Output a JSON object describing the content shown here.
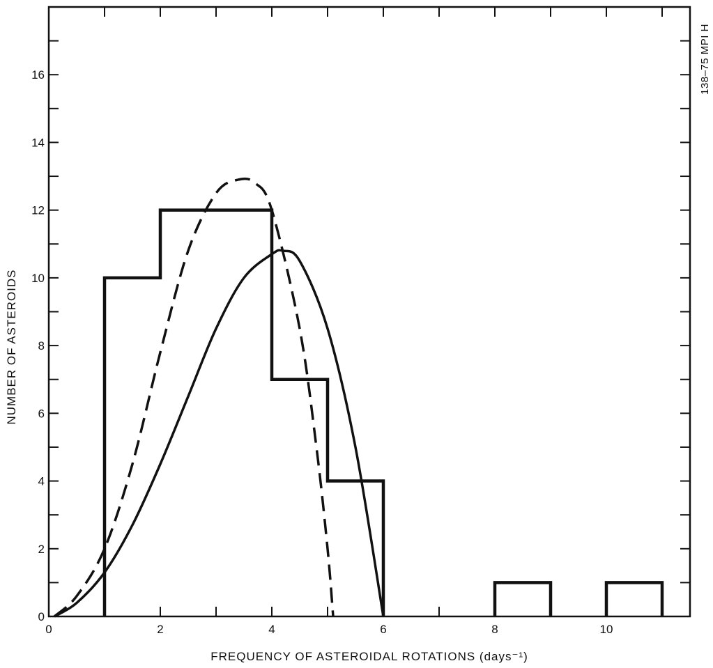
{
  "chart_data": {
    "type": "line",
    "xlabel": "FREQUENCY OF ASTEROIDAL ROTATIONS (days⁻¹)",
    "ylabel": "NUMBER OF ASTEROIDS",
    "side_note": "138–75 MPI H",
    "xlim": [
      0,
      11.5
    ],
    "ylim": [
      0,
      18
    ],
    "x_ticks": [
      0,
      2,
      4,
      6,
      8,
      10
    ],
    "y_ticks": [
      0,
      2,
      4,
      6,
      8,
      10,
      12,
      14,
      16
    ],
    "x_minor_ticks": [
      1,
      3,
      5,
      7,
      9,
      11
    ],
    "y_minor_ticks": [
      1,
      3,
      5,
      7,
      9,
      11,
      13,
      15,
      17
    ],
    "grid": false,
    "histogram": {
      "bins": [
        {
          "x0": 1,
          "x1": 2,
          "count": 10
        },
        {
          "x0": 2,
          "x1": 3,
          "count": 12
        },
        {
          "x0": 3,
          "x1": 4,
          "count": 12
        },
        {
          "x0": 4,
          "x1": 5,
          "count": 7
        },
        {
          "x0": 5,
          "x1": 6,
          "count": 4
        },
        {
          "x0": 8,
          "x1": 9,
          "count": 1
        },
        {
          "x0": 10,
          "x1": 11,
          "count": 1
        }
      ]
    },
    "series": [
      {
        "style": "solid",
        "x": [
          0.1,
          0.5,
          1.0,
          1.5,
          2.0,
          2.5,
          3.0,
          3.5,
          4.0,
          4.2,
          4.5,
          5.0,
          5.5,
          6.0
        ],
        "y": [
          0.0,
          0.4,
          1.3,
          2.7,
          4.5,
          6.5,
          8.5,
          10.0,
          10.7,
          10.8,
          10.5,
          8.5,
          5.0,
          0.0
        ]
      },
      {
        "style": "dashed",
        "x": [
          0.1,
          0.5,
          1.0,
          1.5,
          2.0,
          2.5,
          3.0,
          3.4,
          3.7,
          4.0,
          4.5,
          4.8,
          5.0,
          5.1
        ],
        "y": [
          0.0,
          0.6,
          2.0,
          4.5,
          7.8,
          10.8,
          12.5,
          12.9,
          12.8,
          12.0,
          8.5,
          5.0,
          2.0,
          0.0
        ]
      }
    ]
  }
}
